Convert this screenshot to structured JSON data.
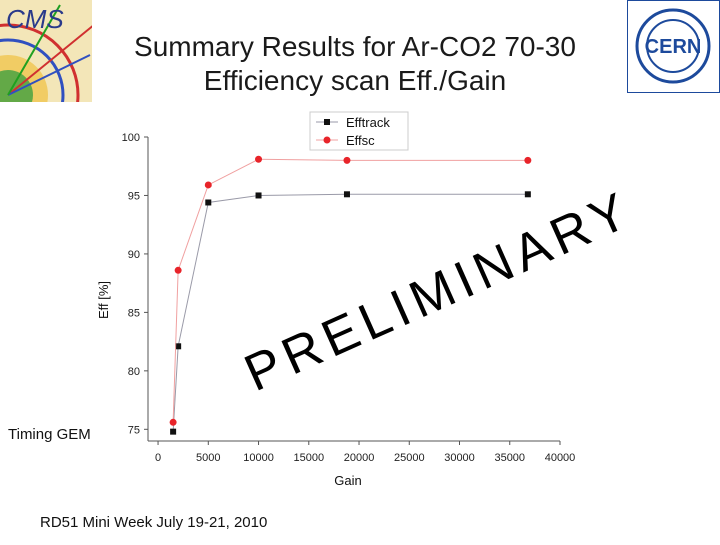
{
  "slide": {
    "title_line1": "Summary Results for Ar-CO2 70-30",
    "title_line2": "Efficiency scan Eff./Gain",
    "footer": "RD51 Mini Week July 19-21, 2010",
    "side_label": "Timing GEM",
    "watermark": "PRELIMINARY",
    "logos": {
      "left_text": "CMS",
      "right_text": "CERN"
    }
  },
  "colors": {
    "efftrack": "#111111",
    "effsc": "#e8242a",
    "efftrack_line": "#9a9aa8",
    "effsc_line": "#f0a0a0",
    "axis": "#555555"
  },
  "chart_data": {
    "type": "line",
    "xlabel": "Gain",
    "ylabel": "Eff [%]",
    "xlim": [
      -1000,
      40000
    ],
    "ylim": [
      74,
      100
    ],
    "xticks": [
      0,
      5000,
      10000,
      15000,
      20000,
      25000,
      30000,
      35000,
      40000
    ],
    "yticks": [
      75,
      80,
      85,
      90,
      95,
      100
    ],
    "legend_position": "top-center",
    "grid": false,
    "series": [
      {
        "name": "Efftrack",
        "marker": "square",
        "x": [
          1500,
          2000,
          5000,
          10000,
          18800,
          36800
        ],
        "y": [
          74.8,
          82.1,
          94.4,
          95.0,
          95.1,
          95.1
        ]
      },
      {
        "name": "Effsc",
        "marker": "circle",
        "x": [
          1500,
          2000,
          5000,
          10000,
          18800,
          36800
        ],
        "y": [
          75.6,
          88.6,
          95.9,
          98.1,
          98.0,
          98.0
        ]
      }
    ]
  }
}
